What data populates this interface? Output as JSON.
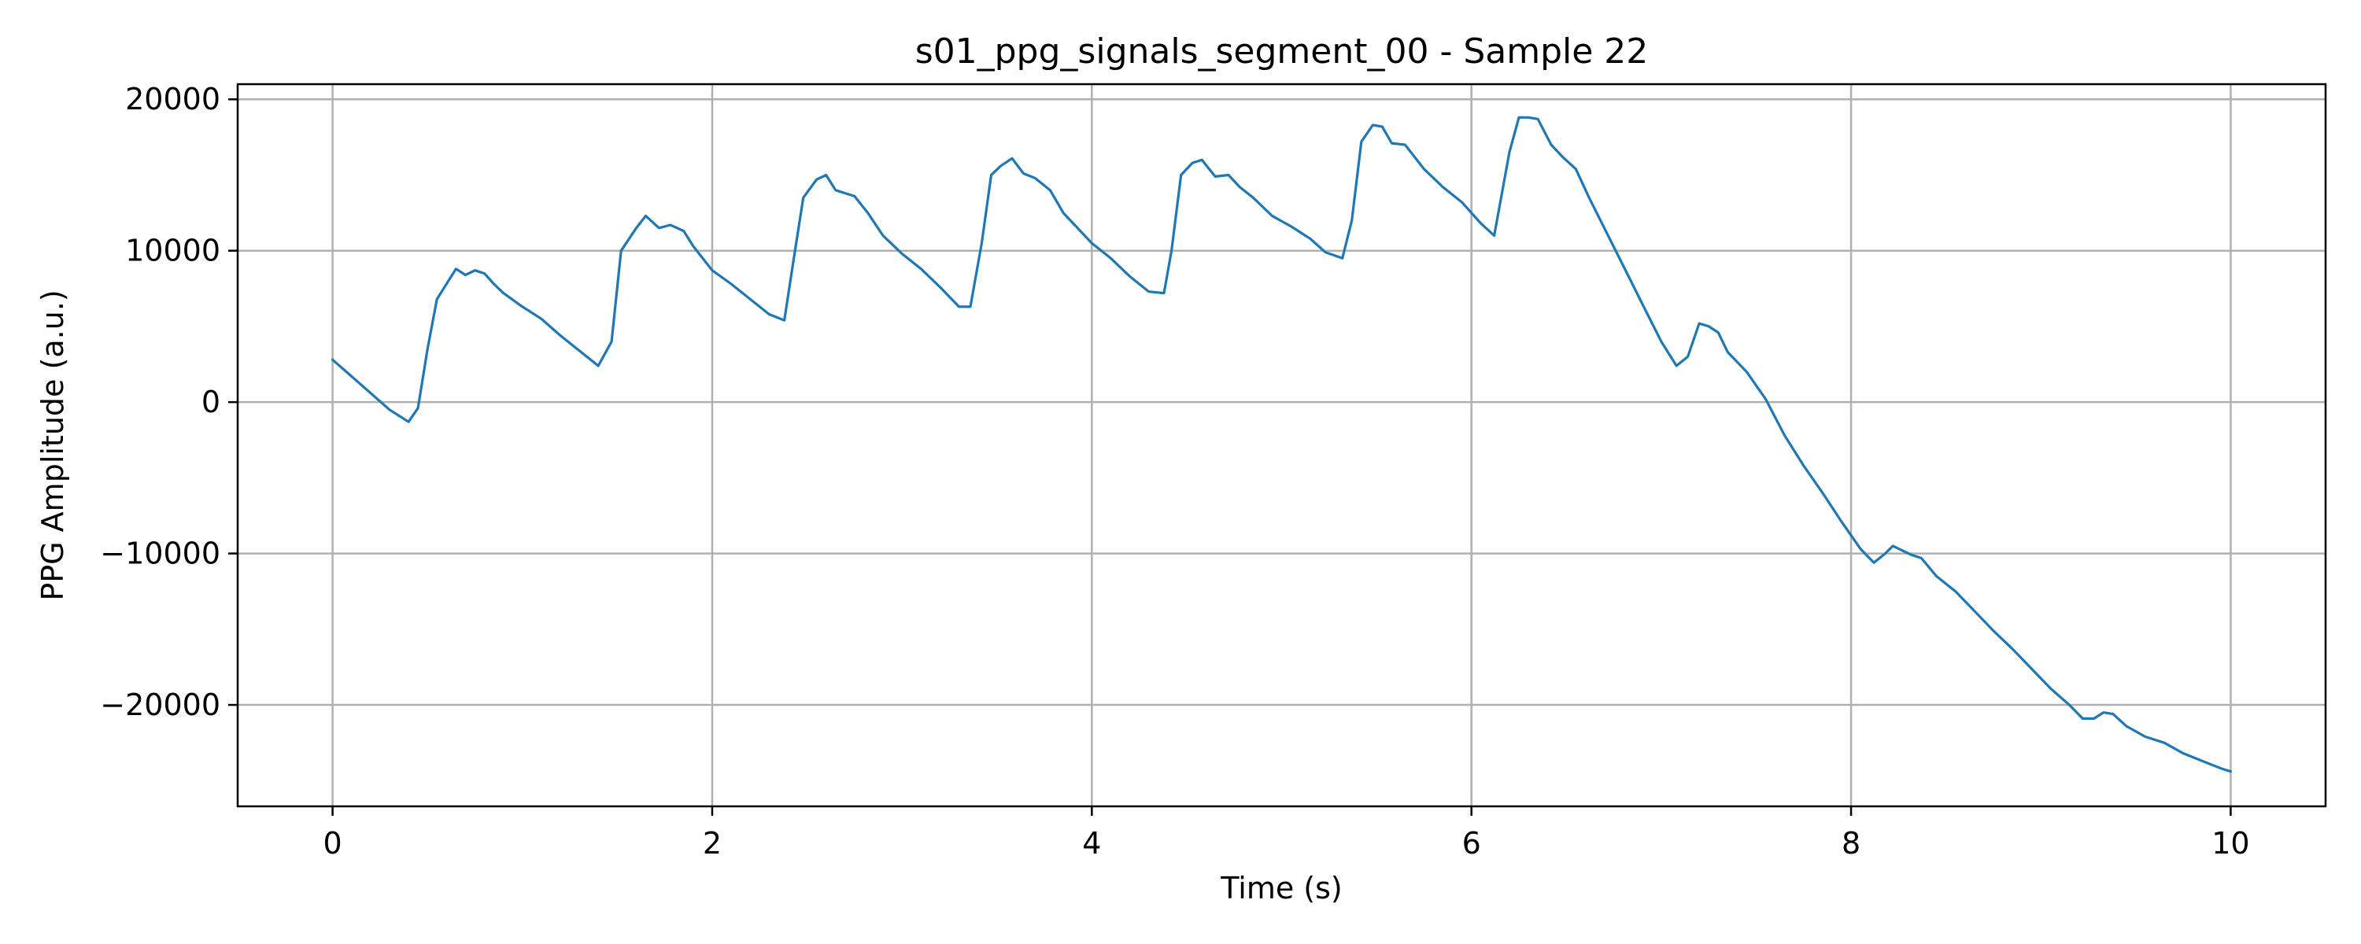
{
  "chart_data": {
    "type": "line",
    "title": "s01_ppg_signals_segment_00 - Sample 22",
    "xlabel": "Time (s)",
    "ylabel": "PPG Amplitude (a.u.)",
    "xlim": [
      -0.5,
      10.5
    ],
    "ylim": [
      -26700,
      21000
    ],
    "xticks": [
      0,
      2,
      4,
      6,
      8,
      10
    ],
    "xtick_labels": [
      "0",
      "2",
      "4",
      "6",
      "8",
      "10"
    ],
    "yticks": [
      20000,
      10000,
      0,
      -10000,
      -20000
    ],
    "ytick_labels": [
      "20000",
      "10000",
      "0",
      "−10000",
      "−20000"
    ],
    "grid": true,
    "line_color": "#1f77b4",
    "series": [
      {
        "x": [
          0.0,
          0.1,
          0.2,
          0.3,
          0.4,
          0.45,
          0.5,
          0.55,
          0.6,
          0.65,
          0.7,
          0.75,
          0.8,
          0.85,
          0.9,
          1.0,
          1.1,
          1.2,
          1.3,
          1.4,
          1.47,
          1.52,
          1.6,
          1.65,
          1.72,
          1.78,
          1.85,
          1.9,
          2.0,
          2.1,
          2.2,
          2.3,
          2.38,
          2.43,
          2.48,
          2.55,
          2.6,
          2.65,
          2.7,
          2.75,
          2.82,
          2.9,
          3.0,
          3.1,
          3.2,
          3.3,
          3.36,
          3.42,
          3.47,
          3.52,
          3.58,
          3.64,
          3.7,
          3.78,
          3.85,
          4.0,
          4.1,
          4.2,
          4.3,
          4.38,
          4.42,
          4.47,
          4.53,
          4.58,
          4.65,
          4.72,
          4.78,
          4.85,
          4.95,
          5.05,
          5.15,
          5.23,
          5.32,
          5.37,
          5.42,
          5.48,
          5.53,
          5.58,
          5.65,
          5.75,
          5.85,
          5.95,
          6.05,
          6.12,
          6.2,
          6.25,
          6.3,
          6.35,
          6.42,
          6.48,
          6.55,
          6.62,
          6.7,
          6.8,
          6.9,
          7.0,
          7.08,
          7.14,
          7.2,
          7.25,
          7.3,
          7.35,
          7.45,
          7.55,
          7.65,
          7.75,
          7.85,
          7.95,
          8.05,
          8.12,
          8.18,
          8.22,
          8.27,
          8.32,
          8.37,
          8.45,
          8.55,
          8.65,
          8.75,
          8.85,
          8.95,
          9.05,
          9.15,
          9.22,
          9.28,
          9.33,
          9.38,
          9.45,
          9.55,
          9.65,
          9.75,
          9.85,
          9.95,
          10.0
        ],
        "y": [
          2800,
          1700,
          600,
          -500,
          -1300,
          -400,
          3500,
          6800,
          7800,
          8800,
          8400,
          8700,
          8500,
          7800,
          7200,
          6300,
          5500,
          4400,
          3400,
          2400,
          4000,
          10000,
          11500,
          12300,
          11500,
          11700,
          11300,
          10300,
          8700,
          7800,
          6800,
          5800,
          5400,
          9500,
          13500,
          14700,
          15000,
          14000,
          13800,
          13600,
          12500,
          11000,
          9800,
          8800,
          7600,
          6300,
          6300,
          10500,
          15000,
          15600,
          16100,
          15100,
          14800,
          14000,
          12500,
          10500,
          9500,
          8300,
          7300,
          7200,
          10000,
          15000,
          15800,
          16000,
          14900,
          15000,
          14200,
          13500,
          12300,
          11600,
          10800,
          9900,
          9500,
          12000,
          17200,
          18300,
          18200,
          17100,
          17000,
          15400,
          14200,
          13200,
          11800,
          11000,
          16500,
          18800,
          18800,
          18700,
          17000,
          16200,
          15400,
          13500,
          11500,
          9000,
          6500,
          4000,
          2400,
          3000,
          5200,
          5000,
          4600,
          3300,
          2000,
          200,
          -2200,
          -4200,
          -6000,
          -7900,
          -9700,
          -10600,
          -10000,
          -9500,
          -9800,
          -10100,
          -10300,
          -11500,
          -12500,
          -13800,
          -15100,
          -16300,
          -17600,
          -18900,
          -20000,
          -20900,
          -20900,
          -20500,
          -20600,
          -21400,
          -22100,
          -22500,
          -23200,
          -23700,
          -24200,
          -24400
        ]
      }
    ]
  }
}
